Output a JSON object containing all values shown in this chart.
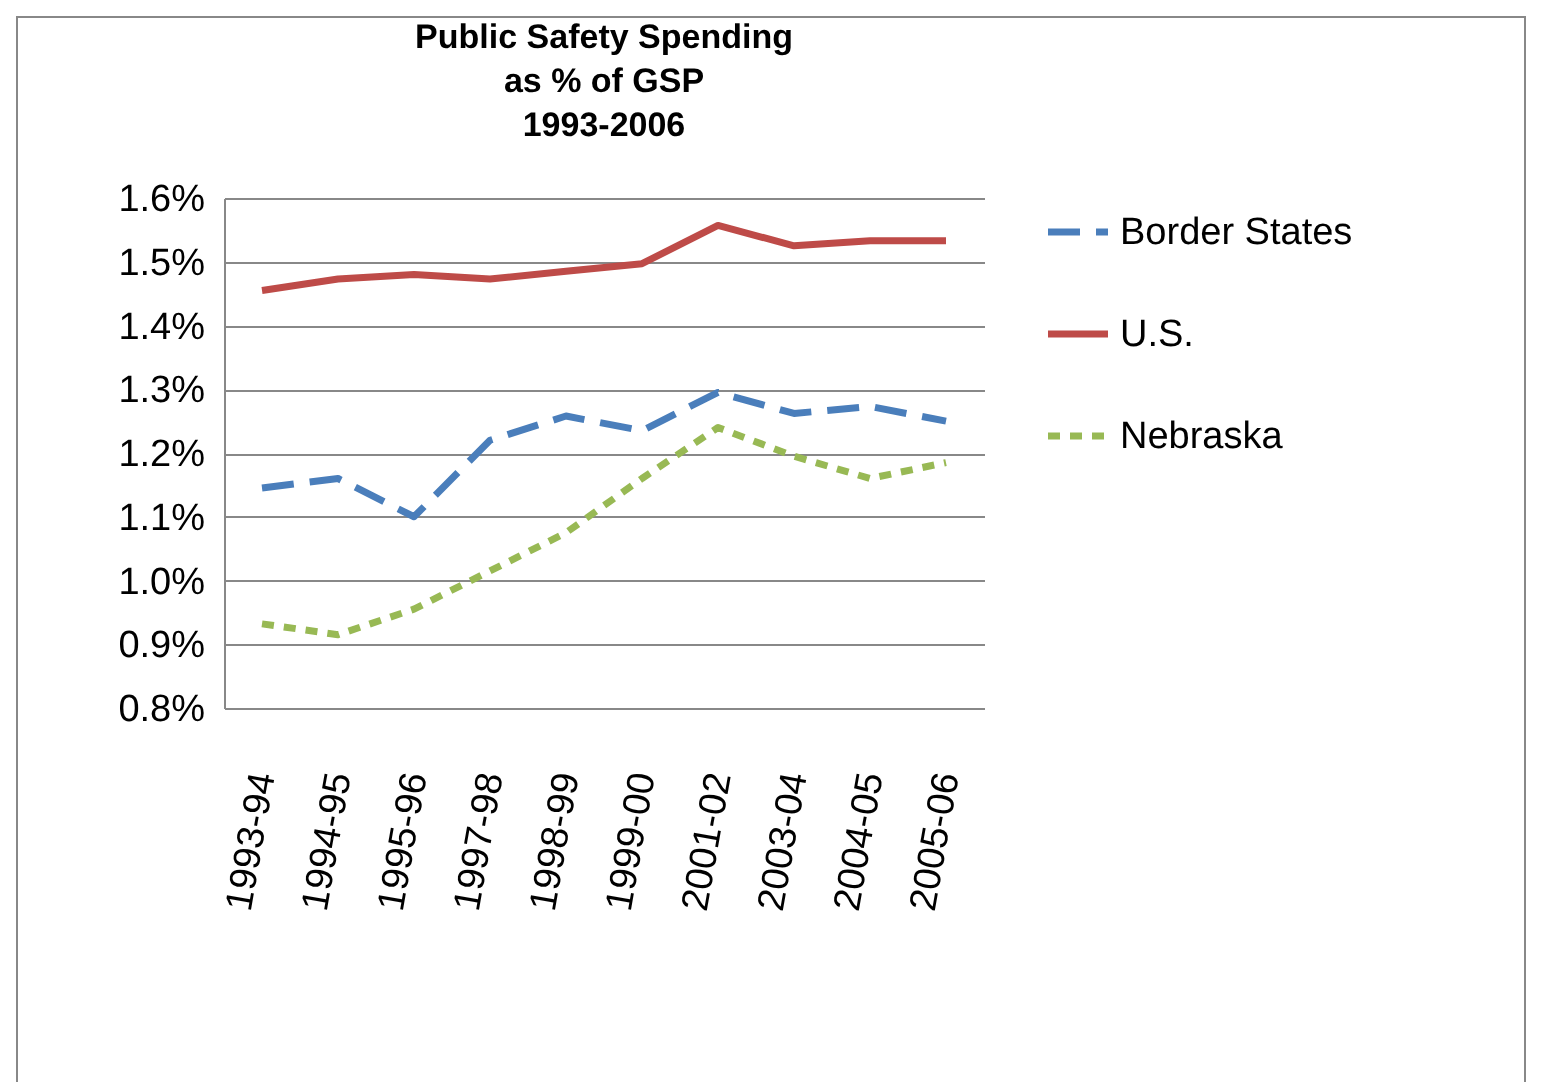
{
  "chart_data": {
    "type": "line",
    "title": "Public Safety Spending\nas % of GSP\n1993-2006",
    "categories": [
      "1993-94",
      "1994-95",
      "1995-96",
      "1997-98",
      "1998-99",
      "1999-00",
      "2001-02",
      "2003-04",
      "2004-05",
      "2005-06"
    ],
    "series": [
      {
        "name": "Border States",
        "color": "#4a7ebb",
        "line_style": "dashed",
        "values": [
          1.145,
          1.16,
          1.1,
          1.22,
          1.258,
          1.235,
          1.295,
          1.262,
          1.273,
          1.25
        ]
      },
      {
        "name": "U.S.",
        "color": "#be4b48",
        "line_style": "solid",
        "values": [
          1.455,
          1.473,
          1.48,
          1.473,
          1.485,
          1.497,
          1.557,
          1.525,
          1.533,
          1.533
        ]
      },
      {
        "name": "Nebraska",
        "color": "#98b954",
        "line_style": "dotted",
        "values": [
          0.932,
          0.915,
          0.955,
          1.015,
          1.075,
          1.16,
          1.24,
          1.195,
          1.16,
          1.185
        ]
      }
    ],
    "ylim": [
      0.8,
      1.6
    ],
    "yticks": [
      {
        "value": 0.8,
        "label": "0.8%"
      },
      {
        "value": 0.9,
        "label": "0.9%"
      },
      {
        "value": 1.0,
        "label": "1.0%"
      },
      {
        "value": 1.1,
        "label": "1.1%"
      },
      {
        "value": 1.2,
        "label": "1.2%"
      },
      {
        "value": 1.3,
        "label": "1.3%"
      },
      {
        "value": 1.4,
        "label": "1.4%"
      },
      {
        "value": 1.5,
        "label": "1.5%"
      },
      {
        "value": 1.6,
        "label": "1.6%"
      }
    ],
    "grid": "y",
    "legend": "right",
    "marker": "none"
  }
}
